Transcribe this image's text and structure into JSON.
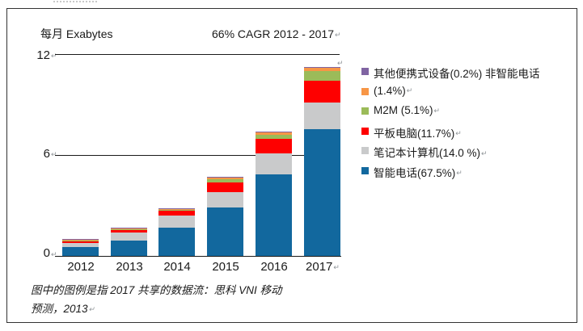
{
  "marks": {
    "line_break": "↵"
  },
  "chart_data": {
    "type": "bar",
    "stacked": true,
    "title_left": "每月 Exabytes",
    "title_center": "66% CAGR 2012 - 2017",
    "unit": "Exabytes per month",
    "categories": [
      "2012",
      "2013",
      "2014",
      "2015",
      "2016",
      "2017"
    ],
    "series": [
      {
        "name": "智能电话(67.5%)",
        "color": "#12689E",
        "values": [
          0.52,
          0.92,
          1.68,
          2.9,
          4.85,
          7.56
        ]
      },
      {
        "name": "笔记本计算机(14.0 %)",
        "color": "#C9CACB",
        "values": [
          0.26,
          0.46,
          0.7,
          0.9,
          1.25,
          1.57
        ]
      },
      {
        "name": "平板电脑(11.7%)",
        "color": "#FE0000",
        "values": [
          0.08,
          0.14,
          0.3,
          0.58,
          0.86,
          1.31
        ]
      },
      {
        "name": "M2M (5.1%)",
        "color": "#9BBB59",
        "values": [
          0.02,
          0.04,
          0.07,
          0.19,
          0.24,
          0.57
        ]
      },
      {
        "name": "非智能电话 (1.4%)",
        "color": "#F79646",
        "values": [
          0.015,
          0.03,
          0.04,
          0.1,
          0.14,
          0.16
        ]
      },
      {
        "name": "其他便携式设备(0.2%)",
        "color": "#8064A2",
        "values": [
          0.005,
          0.01,
          0.01,
          0.03,
          0.06,
          0.03
        ]
      }
    ],
    "totals": [
      0.9,
      1.6,
      2.8,
      4.7,
      7.4,
      11.2
    ],
    "yticks": [
      "0",
      "6",
      "12"
    ],
    "ylim": [
      0,
      12
    ],
    "grid": "horizontal lines at 6 and 12",
    "legend_position": "right"
  },
  "yaxis": {
    "tick_12": "12",
    "tick_6": "6",
    "tick_0": "0"
  },
  "legend": {
    "lines": [
      {
        "color": "#8064A2",
        "text": "其他便携式设备(0.2%) 非智能电话",
        "mark": ""
      },
      {
        "color": "#F79646",
        "text": "(1.4%)",
        "mark": "↵"
      },
      {
        "color": "#9BBB59",
        "text": "M2M (5.1%)",
        "mark": "↵"
      },
      {
        "color": "#FE0000",
        "text": "平板电脑(11.7%)",
        "mark": "↵"
      },
      {
        "color": "#C9CACB",
        "text": "笔记本计算机(14.0 %)",
        "mark": "↵"
      },
      {
        "color": "#12689E",
        "text": "智能电话(67.5%)",
        "mark": "↵"
      }
    ]
  },
  "footnote": {
    "line1": "图中的图例是指 2017 共享的数据流：思科 VNI 移动",
    "line2": "预测，2013"
  }
}
